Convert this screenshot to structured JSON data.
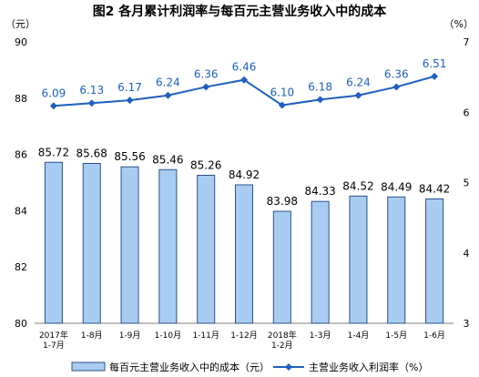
{
  "chart_data": {
    "type": "bar",
    "title": "图2  各月累计利润率与每百元主营业务收入中的成本",
    "left_axis_unit": "（元）",
    "right_axis_unit": "（%）",
    "categories": [
      [
        "2017年",
        "1-7月"
      ],
      [
        "1-8月"
      ],
      [
        "1-9月"
      ],
      [
        "1-10月"
      ],
      [
        "1-11月"
      ],
      [
        "1-12月"
      ],
      [
        "2018年",
        "1-2月"
      ],
      [
        "1-3月"
      ],
      [
        "1-4月"
      ],
      [
        "1-5月"
      ],
      [
        "1-6月"
      ]
    ],
    "bar_series": {
      "name": "每百元主营业务收入中的成本（元）",
      "values": [
        85.72,
        85.68,
        85.56,
        85.46,
        85.26,
        84.92,
        83.98,
        84.33,
        84.52,
        84.49,
        84.42
      ],
      "labels": [
        "85.72",
        "85.68",
        "85.56",
        "85.46",
        "85.26",
        "84.92",
        "83.98",
        "84.33",
        "84.52",
        "84.49",
        "84.42"
      ]
    },
    "line_series": {
      "name": "主营业务收入利润率（%）",
      "values": [
        6.09,
        6.13,
        6.17,
        6.24,
        6.36,
        6.46,
        6.1,
        6.18,
        6.24,
        6.36,
        6.51
      ],
      "labels": [
        "6.09",
        "6.13",
        "6.17",
        "6.24",
        "6.36",
        "6.46",
        "6.10",
        "6.18",
        "6.24",
        "6.36",
        "6.51"
      ]
    },
    "left_axis": {
      "min": 80,
      "max": 90,
      "ticks": [
        "80",
        "82",
        "84",
        "86",
        "88",
        "90"
      ]
    },
    "right_axis": {
      "min": 3,
      "max": 7,
      "ticks": [
        "3",
        "4",
        "5",
        "6",
        "7"
      ]
    },
    "grid": false,
    "legend_position": "bottom",
    "colors": {
      "bar_fill": "#a9cdf2",
      "bar_stroke": "#2c4f86",
      "line": "#1f5fbf"
    }
  }
}
